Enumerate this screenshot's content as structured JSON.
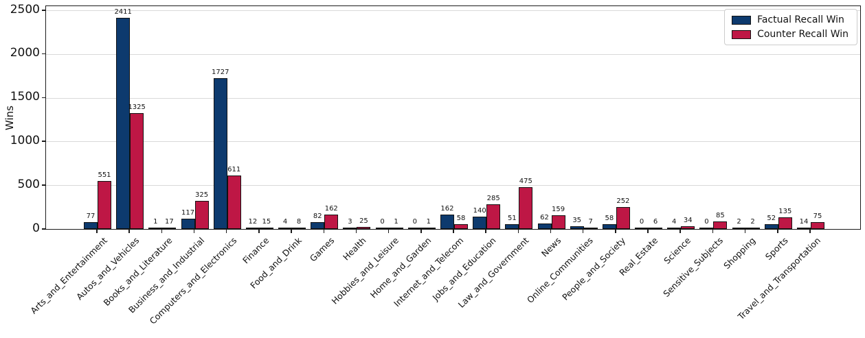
{
  "chart_data": {
    "type": "bar",
    "title": "",
    "xlabel": "",
    "ylabel": "Wins",
    "categories": [
      "Arts_and_Entertainment",
      "Autos_and_Vehicles",
      "Books_and_Literature",
      "Business_and_Industrial",
      "Computers_and_Electronics",
      "Finance",
      "Food_and_Drink",
      "Games",
      "Health",
      "Hobbies_and_Leisure",
      "Home_and_Garden",
      "Internet_and_Telecom",
      "Jobs_and_Education",
      "Law_and_Government",
      "News",
      "Online_Communities",
      "People_and_Society",
      "Real_Estate",
      "Science",
      "Sensitive_Subjects",
      "Shopping",
      "Sports",
      "Travel_and_Transportation"
    ],
    "series": [
      {
        "name": "Factual Recall Win",
        "color": "#0d3a6e",
        "values": [
          77,
          2411,
          1,
          117,
          1727,
          12,
          4,
          82,
          3,
          0,
          0,
          162,
          140,
          51,
          62,
          35,
          58,
          0,
          4,
          0,
          2,
          52,
          14
        ]
      },
      {
        "name": "Counter Recall Win",
        "color": "#be1745",
        "values": [
          551,
          1325,
          17,
          325,
          611,
          15,
          8,
          162,
          25,
          1,
          1,
          58,
          285,
          475,
          159,
          7,
          252,
          6,
          34,
          85,
          2,
          135,
          75
        ]
      }
    ],
    "ylim": [
      0,
      2500
    ],
    "yticks": [
      0,
      500,
      1000,
      1500,
      2000,
      2500
    ],
    "grid": true,
    "legend_position": "top-right",
    "bar_edge_color": "#111111",
    "value_labels": true
  }
}
